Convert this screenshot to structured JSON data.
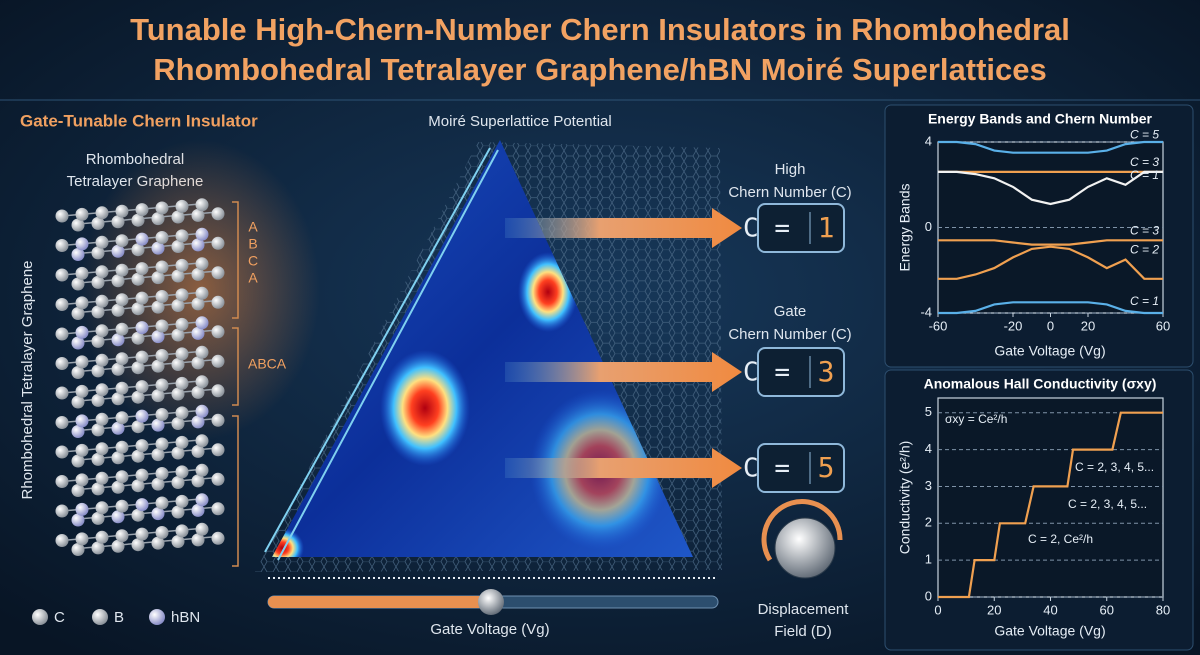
{
  "header": {
    "title_lines": [
      "Tunable High-Chern-Number Chern Insulators in Rhombohedral",
      "Rhombohedral Tetralayer Graphene/hBN Moiré Superlattices"
    ]
  },
  "left_panel": {
    "heading": "Gate-Tunable Chern Insulator",
    "material_lines": [
      "Rhombohedral",
      "Tetralayer Graphene"
    ],
    "vertical_label": "Rhombohedral Tetralayer Graphene",
    "stack_top": [
      "A",
      "B",
      "C",
      "A"
    ],
    "stack_middle": "ABCA",
    "legend": [
      "C",
      "B",
      "hBN"
    ]
  },
  "center_panel": {
    "heading": "Moiré Superlattice Potential",
    "slider_label": "Gate Voltage (Vg)"
  },
  "readouts": [
    {
      "title_lines": [
        "High",
        "Chern Number (C)"
      ],
      "label": "C =",
      "value": 1
    },
    {
      "title_lines": [
        "Gate",
        "Chern Number (C)"
      ],
      "label": "C =",
      "value": 3
    },
    {
      "label": "C =",
      "value": 5
    }
  ],
  "knob": {
    "label_lines": [
      "Displacement",
      "Field (D)"
    ]
  },
  "chart_data": [
    {
      "type": "line",
      "title": "Energy Bands and Chern Number",
      "x_label": "Gate Voltage (Vg)",
      "y_label": "Energy Bands",
      "x": [
        -60,
        -50,
        -40,
        -30,
        -20,
        -10,
        0,
        10,
        20,
        30,
        40,
        50,
        60
      ],
      "series": [
        {
          "name": "C = 5",
          "color": "#5ab0e8",
          "values": [
            4,
            4,
            3.9,
            3.6,
            3.5,
            3.5,
            3.5,
            3.5,
            3.5,
            3.6,
            3.9,
            4,
            4
          ]
        },
        {
          "name": "C = 3",
          "color": "#f0a050",
          "values": [
            2.6,
            2.6,
            2.6,
            2.6,
            2.6,
            2.6,
            2.6,
            2.6,
            2.6,
            2.6,
            2.6,
            2.6,
            2.6
          ]
        },
        {
          "name": "C = 1",
          "color": "#f2f2f2",
          "values": [
            2.6,
            2.6,
            2.5,
            2.3,
            1.9,
            1.3,
            1.1,
            1.3,
            1.9,
            2.3,
            2.0,
            2.6,
            2.6
          ]
        },
        {
          "name": "C = 3",
          "color": "#f0a050",
          "values": [
            -0.6,
            -0.6,
            -0.6,
            -0.6,
            -0.7,
            -0.8,
            -0.8,
            -0.8,
            -0.7,
            -0.6,
            -0.6,
            -0.6,
            -0.6
          ]
        },
        {
          "name": "C = 2",
          "color": "#f0a050",
          "values": [
            -2.4,
            -2.4,
            -2.2,
            -1.9,
            -1.4,
            -1.0,
            -0.9,
            -1.0,
            -1.4,
            -1.9,
            -1.5,
            -2.4,
            -2.4
          ]
        },
        {
          "name": "C = 1",
          "color": "#5ab0e8",
          "values": [
            -4,
            -4,
            -3.9,
            -3.6,
            -3.5,
            -3.5,
            -3.5,
            -3.5,
            -3.5,
            -3.6,
            -3.9,
            -4,
            -4
          ]
        }
      ],
      "xlim": [
        -60,
        60
      ],
      "xticks": [
        -60,
        -20,
        0,
        20,
        60
      ],
      "ylim": [
        -4,
        4
      ],
      "yticks": [
        -4,
        0,
        4
      ],
      "grid": true
    },
    {
      "type": "line",
      "title": "Anomalous Hall Conductivity (σxy)",
      "x_label": "Gate Voltage (Vg)",
      "y_label": "Conductivity (e²/h)",
      "x": [
        0,
        11,
        13,
        20,
        22,
        31,
        34,
        46,
        48,
        62,
        65,
        80
      ],
      "values": [
        0,
        0,
        1,
        1,
        2,
        2,
        3,
        3,
        4,
        4,
        5,
        5
      ],
      "color": "#f0a050",
      "annotations": [
        "σxy = Ce²/h",
        "C = 2, 3, 4, 5...",
        "C = 2, 3, 4, 5...",
        "C = 2, Ce²/h"
      ],
      "xlim": [
        0,
        80
      ],
      "xticks": [
        0,
        20,
        40,
        60,
        80
      ],
      "ylim": [
        0,
        5.4
      ],
      "yticks": [
        0,
        1,
        2,
        3,
        4,
        5
      ],
      "grid": true
    }
  ]
}
